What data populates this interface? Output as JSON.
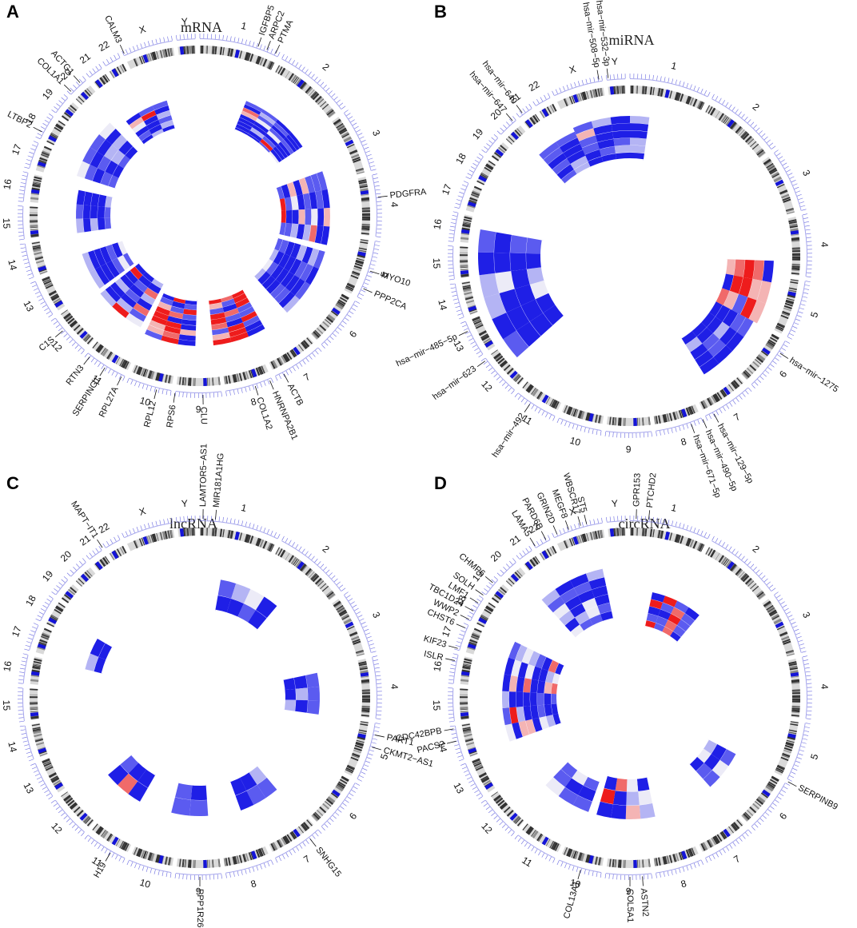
{
  "colors": {
    "blue_strong": "#1f1fe6",
    "blue_mid": "#5b5bf0",
    "blue_light": "#b4b4f4",
    "near_white": "#ecebf7",
    "red_light": "#f4b4b4",
    "red_mid": "#f06a6a",
    "red_strong": "#ee1c1c",
    "ideogram_base": "#d9d9d9",
    "band_dark": "#333333",
    "centromere": "#1414d8",
    "tick": "#6a6ae0"
  },
  "panels": [
    {
      "id": "A",
      "letter": "A",
      "title": "mRNA",
      "chr_labels": [
        "1",
        "2",
        "3",
        "4",
        "5",
        "6",
        "7",
        "8",
        "9",
        "10",
        "11",
        "12",
        "13",
        "14",
        "15",
        "16",
        "17",
        "18",
        "19",
        "20",
        "21",
        "22",
        "X",
        "Y"
      ],
      "genes": [
        {
          "label": "IGFBP5"
        },
        {
          "label": "ARPC2"
        },
        {
          "label": "PTMA"
        },
        {
          "label": "PDGFRA"
        },
        {
          "label": "MYO10"
        },
        {
          "label": "PPP2CA"
        },
        {
          "label": "ACTB"
        },
        {
          "label": "HNRNPA2B1"
        },
        {
          "label": "COL1A2"
        },
        {
          "label": "CLU"
        },
        {
          "label": "RPS6"
        },
        {
          "label": "RPL12"
        },
        {
          "label": "RPL27A"
        },
        {
          "label": "SERPING1"
        },
        {
          "label": "RTN3"
        },
        {
          "label": "C1S"
        },
        {
          "label": "LTBP2"
        },
        {
          "label": "COL1A1"
        },
        {
          "label": "ACTG1"
        },
        {
          "label": "CALM3"
        }
      ]
    },
    {
      "id": "B",
      "letter": "B",
      "title": "miRNA",
      "chr_labels": [
        "1",
        "2",
        "3",
        "4",
        "5",
        "6",
        "7",
        "8",
        "9",
        "10",
        "11",
        "12",
        "13",
        "14",
        "15",
        "16",
        "17",
        "18",
        "19",
        "20",
        "21",
        "22",
        "X",
        "Y"
      ],
      "genes": [
        {
          "label": "hsa−mir−508−5p"
        },
        {
          "label": "hsa−mir−532−3p"
        },
        {
          "label": "hsa−mir−647"
        },
        {
          "label": "hsa−mir−640"
        },
        {
          "label": "hsa−mir−485−5p"
        },
        {
          "label": "hsa−mir−623"
        },
        {
          "label": "hsa−mir−492"
        },
        {
          "label": "hsa−mir−1275"
        },
        {
          "label": "hsa−mir−129−5p"
        },
        {
          "label": "hsa−mir−490−5p"
        },
        {
          "label": "hsa−mir−671−5p"
        }
      ]
    },
    {
      "id": "C",
      "letter": "C",
      "title": "lncRNA",
      "chr_labels": [
        "1",
        "2",
        "3",
        "4",
        "5",
        "6",
        "7",
        "8",
        "9",
        "10",
        "11",
        "12",
        "13",
        "14",
        "15",
        "16",
        "17",
        "18",
        "19",
        "20",
        "21",
        "22",
        "X",
        "Y"
      ],
      "genes": [
        {
          "label": "LAMTOR5−AS1"
        },
        {
          "label": "MIR181A1HG"
        },
        {
          "label": "PART1"
        },
        {
          "label": "CKMT2−AS1"
        },
        {
          "label": "SNHG15"
        },
        {
          "label": "PPP1R26−AS1"
        },
        {
          "label": "H19"
        },
        {
          "label": "MAPT−IT1"
        }
      ]
    },
    {
      "id": "D",
      "letter": "D",
      "title": "circRNA",
      "chr_labels": [
        "1",
        "2",
        "3",
        "4",
        "5",
        "6",
        "7",
        "8",
        "9",
        "10",
        "11",
        "12",
        "13",
        "14",
        "15",
        "16",
        "17",
        "18",
        "19",
        "20",
        "21",
        "22",
        "X",
        "Y"
      ],
      "genes": [
        {
          "label": "GPR153"
        },
        {
          "label": "PTCHD2"
        },
        {
          "label": "ST5"
        },
        {
          "label": "LAMA5"
        },
        {
          "label": "PARD6B"
        },
        {
          "label": "GRIN2D"
        },
        {
          "label": "MEGF8"
        },
        {
          "label": "WBSCR17"
        },
        {
          "label": "CHMP6"
        },
        {
          "label": "CHST6"
        },
        {
          "label": "WWP2"
        },
        {
          "label": "TBC1D24"
        },
        {
          "label": "LMF1"
        },
        {
          "label": "SOLH"
        },
        {
          "label": "ISLR"
        },
        {
          "label": "KIF23"
        },
        {
          "label": "PACS2"
        },
        {
          "label": "CDC42BPB"
        },
        {
          "label": "SERPINB9"
        },
        {
          "label": "ASTN2"
        },
        {
          "label": "COL5A1"
        },
        {
          "label": "COL13A1"
        }
      ]
    }
  ]
}
